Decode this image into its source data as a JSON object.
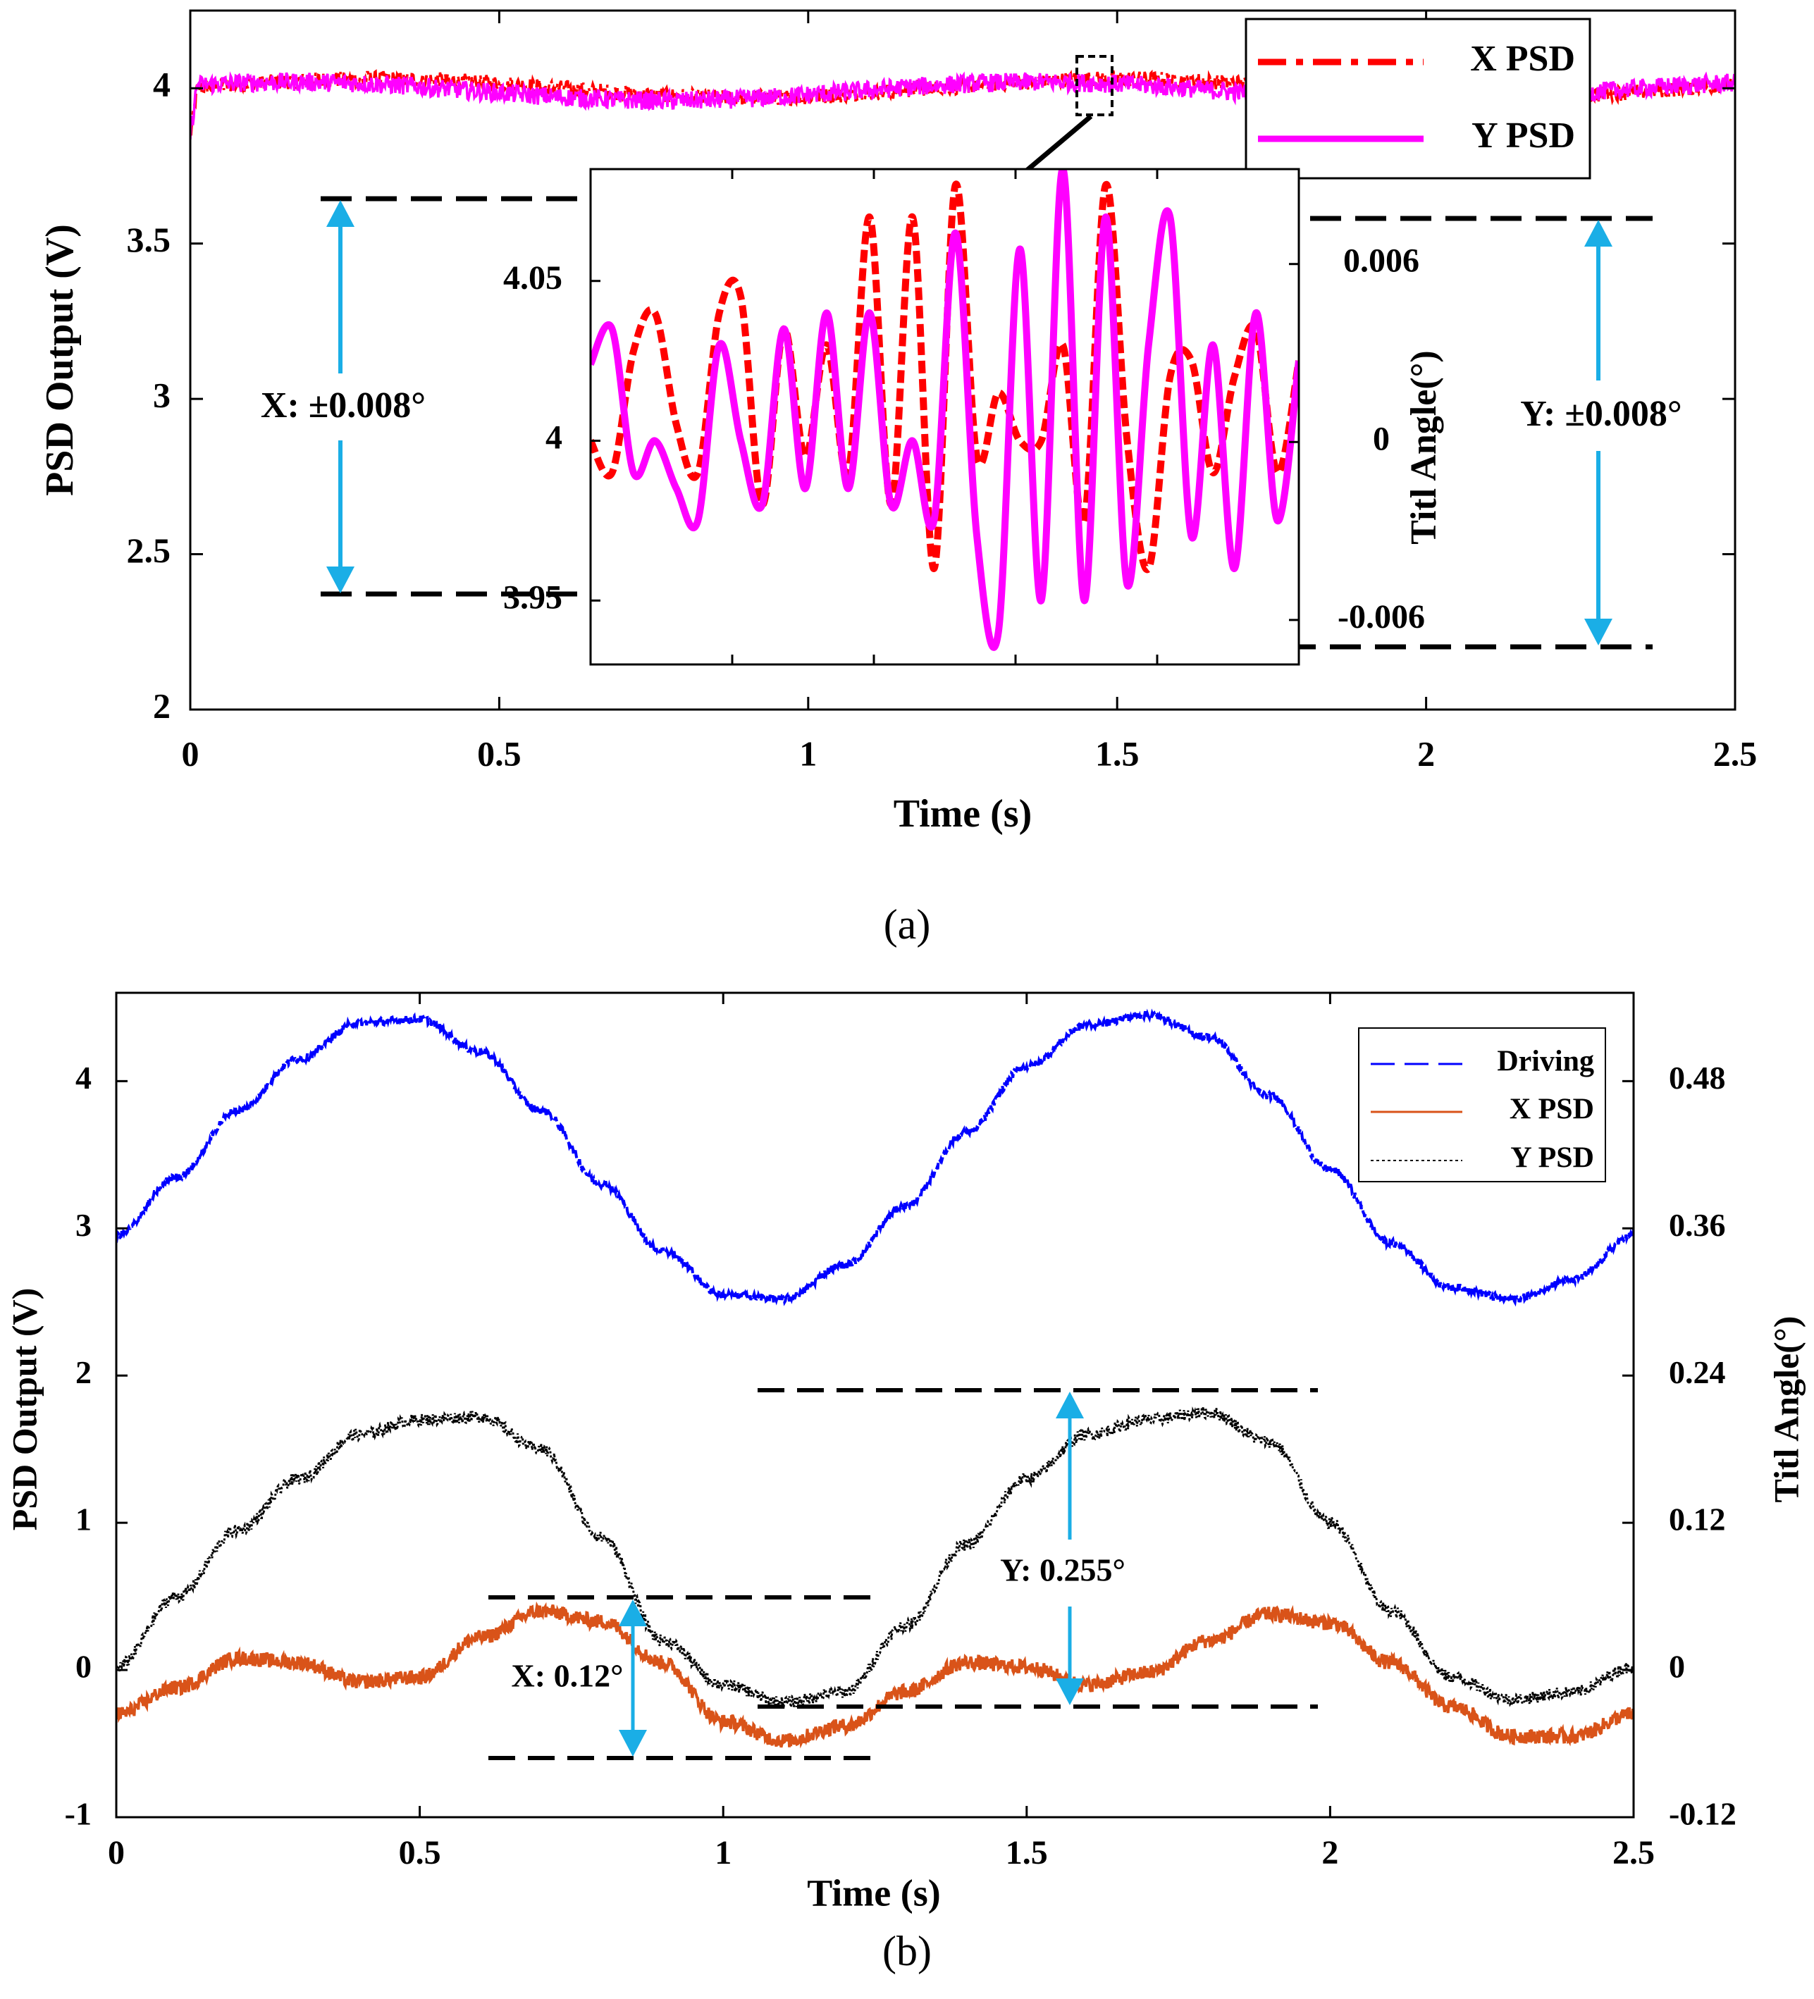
{
  "figure": {
    "colors": {
      "x_psd_a": "#ff0000",
      "y_psd_a": "#ff00ff",
      "driving": "#0000ff",
      "x_psd_b": "#d95319",
      "y_psd_b": "#000000",
      "annotation": "#1aaee6",
      "dashed": "#000000"
    }
  },
  "chart_data": [
    {
      "id": "a",
      "type": "line",
      "caption": "(a)",
      "xlabel": "Time (s)",
      "ylabel": "PSD Output (V)",
      "xlim": [
        0,
        2.5
      ],
      "ylim": [
        2,
        4.25
      ],
      "xticks": [
        "0",
        "0.5",
        "1",
        "1.5",
        "2",
        "2.5"
      ],
      "yticks": [
        "2",
        "2.5",
        "3",
        "3.5",
        "4"
      ],
      "series": [
        {
          "name": "X PSD",
          "style": "dash-dot",
          "color": "#ff0000",
          "mean": 4.0,
          "drift": 0.03,
          "noise": 0.025
        },
        {
          "name": "Y PSD",
          "style": "solid",
          "color": "#ff00ff",
          "mean": 3.99,
          "drift": 0.03,
          "noise": 0.03
        }
      ],
      "legend": [
        "X PSD",
        "Y PSD"
      ],
      "annotations": {
        "x_range": "X: ±0.008°",
        "y_range": "Y: ±0.008°"
      },
      "inset": {
        "left_ylim": [
          3.93,
          4.085
        ],
        "left_yticks": [
          "3.95",
          "4",
          "4.05"
        ],
        "right_ylabel": "Titl Angle(°)",
        "right_ylim": [
          -0.0075,
          0.0092
        ],
        "right_yticks": [
          "-0.006",
          "0",
          "0.006"
        ],
        "x_series": [
          4.0,
          3.99,
          4.028,
          4.04,
          4.005,
          3.99,
          4.04,
          4.045,
          3.98,
          4.035,
          3.995,
          4.03,
          3.99,
          4.07,
          3.98,
          4.07,
          3.96,
          4.08,
          3.995,
          4.015,
          4.0,
          4.0,
          4.03,
          3.975,
          4.08,
          4.0,
          3.96,
          4.02,
          4.025,
          3.99,
          4.02,
          4.035,
          3.99,
          4.025
        ],
        "y_series": [
          4.024,
          4.035,
          3.99,
          4.0,
          3.985,
          3.975,
          4.03,
          4.0,
          3.98,
          4.035,
          3.985,
          4.04,
          3.985,
          4.04,
          3.98,
          4.0,
          3.975,
          4.065,
          3.97,
          3.94,
          4.06,
          3.95,
          4.085,
          3.95,
          4.07,
          3.955,
          4.03,
          4.07,
          3.97,
          4.03,
          3.96,
          4.04,
          3.975,
          4.025
        ]
      }
    },
    {
      "id": "b",
      "type": "line",
      "caption": "(b)",
      "xlabel": "Time (s)",
      "ylabel": "PSD Output (V)",
      "right_ylabel": "Titl Angle(°)",
      "xlim": [
        0,
        2.5
      ],
      "ylim": [
        -1,
        4.6
      ],
      "xticks": [
        "0",
        "0.5",
        "1",
        "1.5",
        "2",
        "2.5"
      ],
      "yticks": [
        "-1",
        "0",
        "1",
        "2",
        "3",
        "4"
      ],
      "right_ylim": [
        -0.12,
        0.552
      ],
      "right_yticks": [
        "-0.12",
        "0",
        "0.12",
        "0.24",
        "0.36",
        "0.48"
      ],
      "series": [
        {
          "name": "Driving",
          "style": "dashed",
          "color": "#0000ff",
          "x": [
            0,
            0.1,
            0.2,
            0.3,
            0.4,
            0.5,
            0.6,
            0.7,
            0.8,
            0.9,
            1.0,
            1.1,
            1.2,
            1.3,
            1.4,
            1.5,
            1.6,
            1.7,
            1.8,
            1.9,
            2.0,
            2.1,
            2.2,
            2.3,
            2.4,
            2.5
          ],
          "y": [
            2.95,
            3.35,
            3.8,
            4.15,
            4.4,
            4.42,
            4.2,
            3.8,
            3.3,
            2.85,
            2.55,
            2.52,
            2.75,
            3.15,
            3.65,
            4.1,
            4.38,
            4.45,
            4.3,
            3.9,
            3.4,
            2.9,
            2.6,
            2.52,
            2.65,
            2.95
          ]
        },
        {
          "name": "X PSD",
          "style": "solid",
          "color": "#d95319",
          "x": [
            0,
            0.1,
            0.2,
            0.3,
            0.4,
            0.5,
            0.6,
            0.7,
            0.8,
            0.9,
            1.0,
            1.1,
            1.2,
            1.3,
            1.4,
            1.5,
            1.6,
            1.7,
            1.8,
            1.9,
            2.0,
            2.1,
            2.2,
            2.3,
            2.4,
            2.5
          ],
          "y": [
            -0.3,
            -0.12,
            0.08,
            0.05,
            -0.08,
            -0.05,
            0.22,
            0.4,
            0.33,
            0.05,
            -0.35,
            -0.48,
            -0.38,
            -0.15,
            0.05,
            0.02,
            -0.1,
            -0.02,
            0.2,
            0.38,
            0.32,
            0.05,
            -0.25,
            -0.45,
            -0.45,
            -0.3
          ]
        },
        {
          "name": "Y PSD",
          "style": "dotted",
          "color": "#000000",
          "x": [
            0,
            0.1,
            0.2,
            0.3,
            0.4,
            0.5,
            0.6,
            0.7,
            0.8,
            0.9,
            1.0,
            1.1,
            1.2,
            1.3,
            1.4,
            1.5,
            1.6,
            1.7,
            1.8,
            1.9,
            2.0,
            2.1,
            2.2,
            2.3,
            2.4,
            2.5
          ],
          "y": [
            0.02,
            0.5,
            0.95,
            1.3,
            1.6,
            1.7,
            1.72,
            1.5,
            0.9,
            0.2,
            -0.1,
            -0.22,
            -0.15,
            0.3,
            0.85,
            1.3,
            1.6,
            1.7,
            1.75,
            1.55,
            1.0,
            0.4,
            -0.05,
            -0.2,
            -0.15,
            0.02
          ]
        }
      ],
      "legend": [
        "Driving",
        "X PSD",
        "Y PSD"
      ],
      "annotations": {
        "x_range": "X: 0.12°",
        "y_range": "Y: 0.255°"
      }
    }
  ]
}
